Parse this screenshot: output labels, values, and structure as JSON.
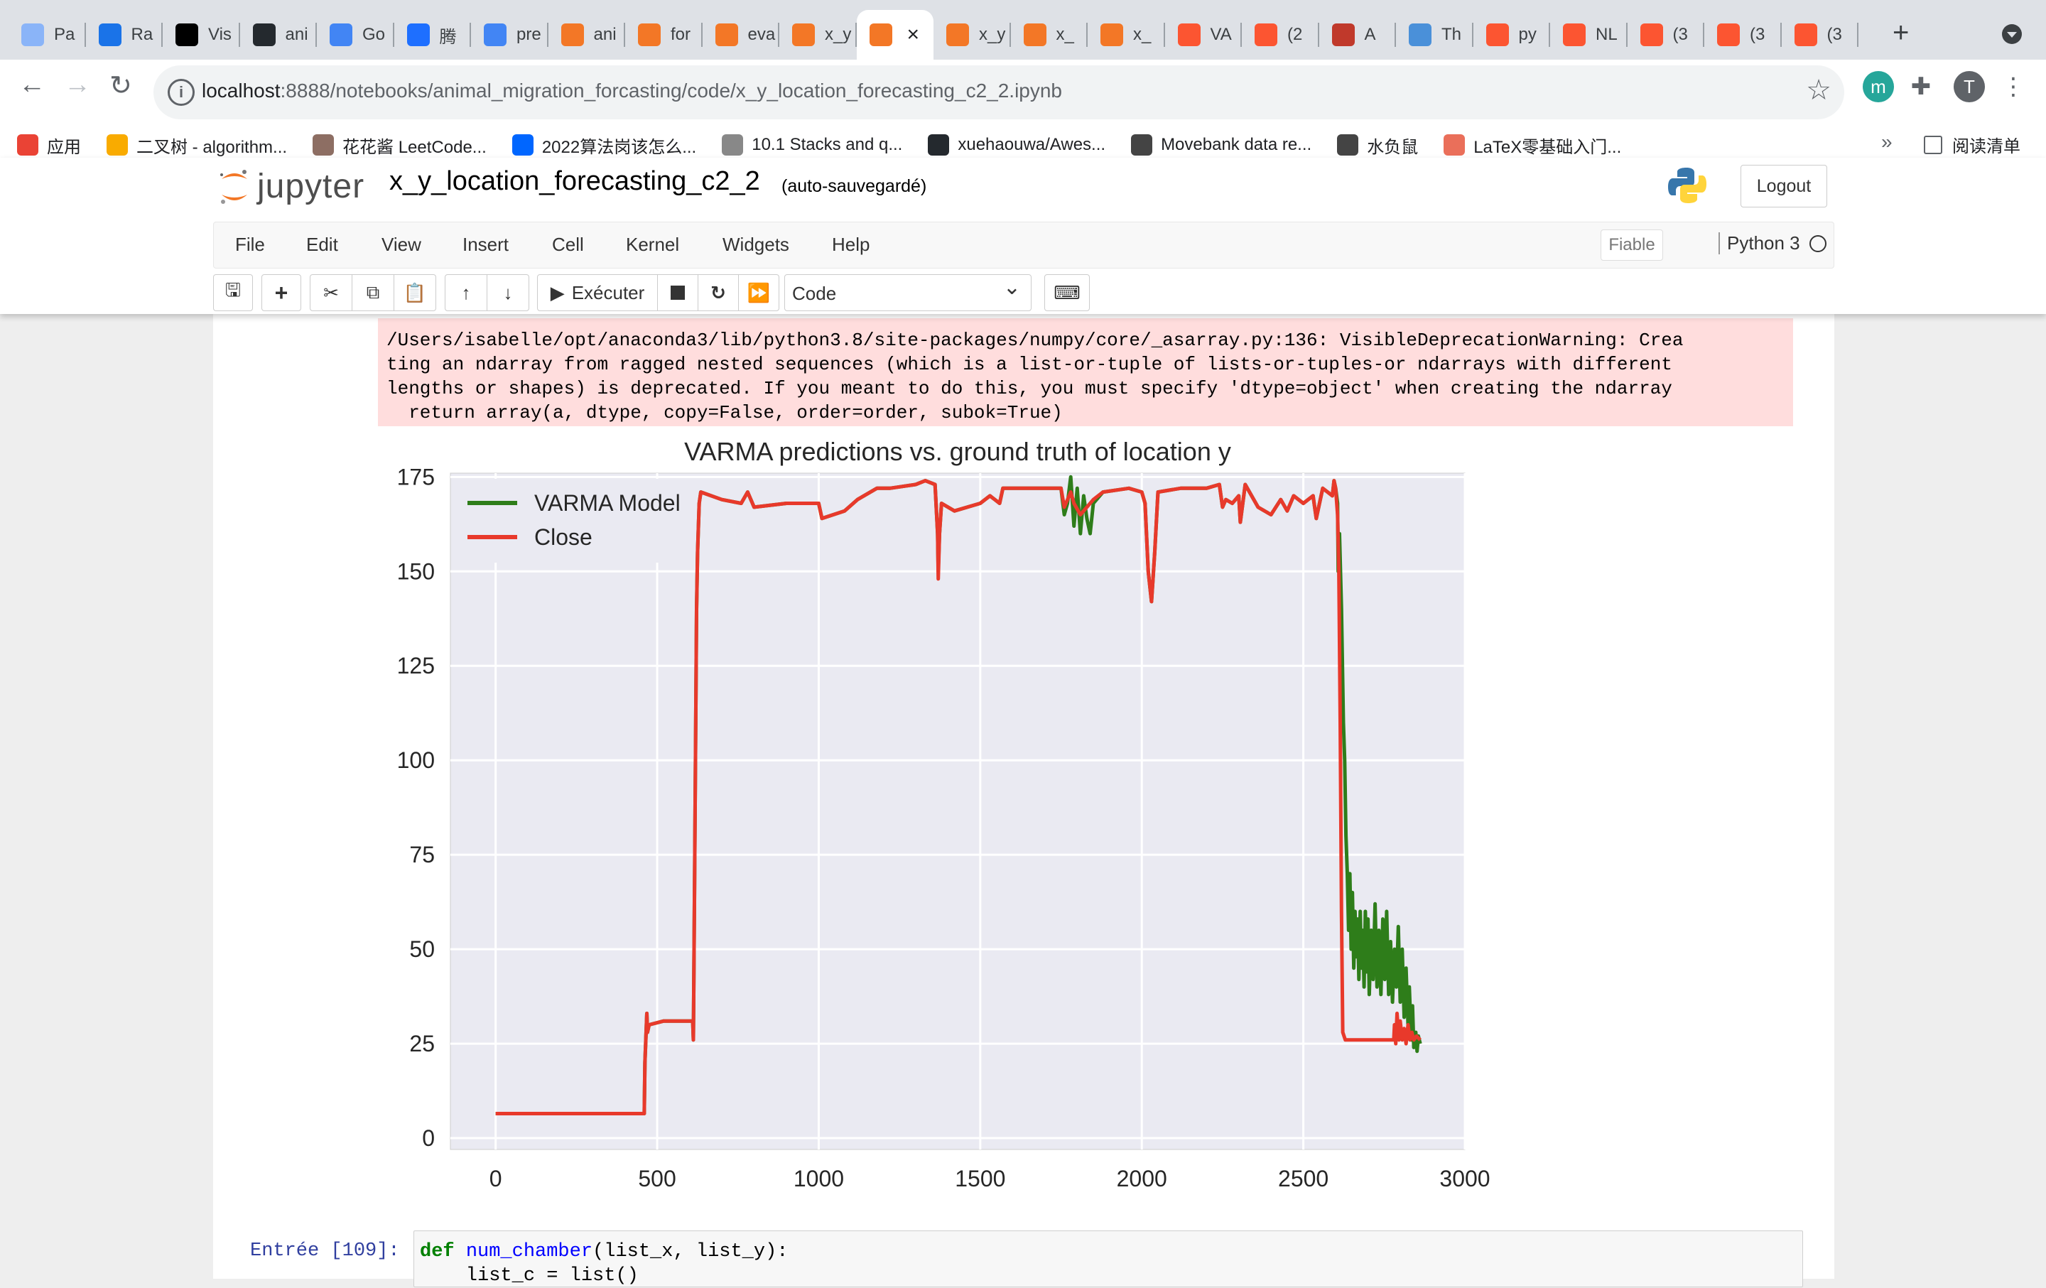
{
  "browser": {
    "tabs": [
      {
        "label": "Pa",
        "icon": "google-icon",
        "color": "#8ab4f8"
      },
      {
        "label": "Ra",
        "icon": "noaa-icon",
        "color": "#1a73e8"
      },
      {
        "label": "Vis",
        "icon": "medium-icon",
        "color": "#000000"
      },
      {
        "label": "ani",
        "icon": "github-icon",
        "color": "#24292e"
      },
      {
        "label": "Go",
        "icon": "google-translate-icon",
        "color": "#4285f4"
      },
      {
        "label": "腾",
        "icon": "tencent-icon",
        "color": "#1e6fff"
      },
      {
        "label": "pre",
        "icon": "docs-icon",
        "color": "#4285f4"
      },
      {
        "label": "ani",
        "icon": "jupyter-icon",
        "color": "#f37726"
      },
      {
        "label": "for",
        "icon": "notebook-icon",
        "color": "#f37726"
      },
      {
        "label": "eva",
        "icon": "notebook-icon",
        "color": "#f37726"
      },
      {
        "label": "x_y",
        "icon": "hourglass-icon",
        "color": "#f37726"
      },
      {
        "label": "",
        "icon": "notebook-icon",
        "color": "#f37726",
        "active": true
      },
      {
        "label": "x_y",
        "icon": "notebook-icon",
        "color": "#f37726"
      },
      {
        "label": "x_",
        "icon": "hourglass-icon",
        "color": "#f37726"
      },
      {
        "label": "x_",
        "icon": "notebook-icon",
        "color": "#f37726"
      },
      {
        "label": "VA",
        "icon": "csdn-icon",
        "color": "#fc5531"
      },
      {
        "label": "(2",
        "icon": "csdn-icon",
        "color": "#fc5531"
      },
      {
        "label": "A",
        "icon": "scholar-icon",
        "color": "#c0392b"
      },
      {
        "label": "Th",
        "icon": "globe-icon",
        "color": "#4a90d9"
      },
      {
        "label": "py",
        "icon": "csdn-icon",
        "color": "#fc5531"
      },
      {
        "label": "NL",
        "icon": "csdn-icon",
        "color": "#fc5531"
      },
      {
        "label": "(3",
        "icon": "csdn-icon",
        "color": "#fc5531"
      },
      {
        "label": "(3",
        "icon": "csdn-icon",
        "color": "#fc5531"
      },
      {
        "label": "(3",
        "icon": "csdn-icon",
        "color": "#fc5531"
      }
    ],
    "url_host": "localhost",
    "url_rest": ":8888/notebooks/animal_migration_forcasting/code/x_y_location_forecasting_c2_2.ipynb",
    "profile_initial": "T",
    "ext_initial": "m",
    "bookmarks": [
      {
        "label": "应用",
        "icon": "apps-icon",
        "color": "#ea4335"
      },
      {
        "label": "二叉树 - algorithm...",
        "icon": "emoji-icon",
        "color": "#f9ab00"
      },
      {
        "label": "花花酱 LeetCode...",
        "icon": "avatar-icon",
        "color": "#8d6e63"
      },
      {
        "label": "2022算法岗该怎么...",
        "icon": "zhihu-icon",
        "color": "#0066ff"
      },
      {
        "label": "10.1 Stacks and q...",
        "icon": "w-icon",
        "color": "#888888"
      },
      {
        "label": "xuehaouwa/Awes...",
        "icon": "github-icon",
        "color": "#24292e"
      },
      {
        "label": "Movebank data re...",
        "icon": "paw-icon",
        "color": "#444444"
      },
      {
        "label": "水负鼠",
        "icon": "paw-icon",
        "color": "#444444"
      },
      {
        "label": "LaTeX零基础入门...",
        "icon": "jian-icon",
        "color": "#ea6f5a"
      }
    ],
    "bookmarks_more": "»",
    "reading_list": "阅读清单"
  },
  "jupyter": {
    "logo_text": "jupyter",
    "notebook_name": "x_y_location_forecasting_c2_2",
    "autosave": "(auto-sauvegardé)",
    "logout": "Logout",
    "menus": [
      "File",
      "Edit",
      "View",
      "Insert",
      "Cell",
      "Kernel",
      "Widgets",
      "Help"
    ],
    "trusted": "Fiable",
    "kernel": "Python 3",
    "run_label": "Exécuter",
    "cell_type": "Code"
  },
  "output": {
    "stderr": "/Users/isabelle/opt/anaconda3/lib/python3.8/site-packages/numpy/core/_asarray.py:136: VisibleDeprecationWarning: Crea\nting an ndarray from ragged nested sequences (which is a list-or-tuple of lists-or-tuples-or ndarrays with different\nlengths or shapes) is deprecated. If you meant to do this, you must specify 'dtype=object' when creating the ndarray\n  return array(a, dtype, copy=False, order=order, subok=True)"
  },
  "next_cell": {
    "prompt": "Entrée [109]:",
    "line1_kw": "def",
    "line1_fn": "num_chamber",
    "line1_rest": "(list_x, list_y):",
    "line2": "    list_c = list()"
  },
  "chart_data": {
    "type": "line",
    "title": "VARMA predictions vs. ground truth of location y",
    "xlabel": "",
    "ylabel": "",
    "xlim": [
      -140,
      3000
    ],
    "ylim": [
      -3,
      176
    ],
    "xticks": [
      0,
      500,
      1000,
      1500,
      2000,
      2500,
      3000
    ],
    "yticks": [
      0,
      25,
      50,
      75,
      100,
      125,
      150,
      175
    ],
    "grid": true,
    "legend_position": "top-left",
    "series": [
      {
        "name": "VARMA Model",
        "color": "#2e7d1a",
        "points": [
          [
            0,
            6.5
          ],
          [
            460,
            6.5
          ],
          [
            460,
            7
          ],
          [
            462,
            20
          ],
          [
            468,
            33
          ],
          [
            470,
            28
          ],
          [
            475,
            30
          ],
          [
            520,
            31
          ],
          [
            610,
            31
          ],
          [
            612,
            26
          ],
          [
            615,
            60
          ],
          [
            622,
            140
          ],
          [
            625,
            155
          ],
          [
            630,
            168
          ],
          [
            635,
            171
          ],
          [
            700,
            169
          ],
          [
            760,
            168
          ],
          [
            780,
            171
          ],
          [
            800,
            167
          ],
          [
            900,
            168
          ],
          [
            1000,
            168
          ],
          [
            1010,
            164
          ],
          [
            1080,
            166
          ],
          [
            1120,
            169
          ],
          [
            1180,
            172
          ],
          [
            1220,
            172
          ],
          [
            1300,
            173
          ],
          [
            1330,
            174
          ],
          [
            1360,
            173
          ],
          [
            1368,
            160
          ],
          [
            1370,
            150
          ],
          [
            1374,
            160
          ],
          [
            1380,
            168
          ],
          [
            1420,
            166
          ],
          [
            1500,
            168
          ],
          [
            1530,
            170
          ],
          [
            1560,
            168
          ],
          [
            1570,
            172
          ],
          [
            1620,
            172
          ],
          [
            1730,
            172
          ],
          [
            1750,
            172
          ],
          [
            1760,
            165
          ],
          [
            1770,
            168
          ],
          [
            1780,
            175
          ],
          [
            1790,
            162
          ],
          [
            1800,
            172
          ],
          [
            1810,
            160
          ],
          [
            1820,
            170
          ],
          [
            1830,
            164
          ],
          [
            1840,
            160
          ],
          [
            1850,
            168
          ],
          [
            1880,
            171
          ],
          [
            1960,
            172
          ],
          [
            2000,
            171
          ],
          [
            2010,
            168
          ],
          [
            2020,
            150
          ],
          [
            2030,
            142
          ],
          [
            2040,
            155
          ],
          [
            2050,
            171
          ],
          [
            2120,
            172
          ],
          [
            2200,
            172
          ],
          [
            2240,
            173
          ],
          [
            2250,
            167
          ],
          [
            2260,
            169
          ],
          [
            2280,
            168
          ],
          [
            2300,
            170
          ],
          [
            2305,
            163
          ],
          [
            2320,
            173
          ],
          [
            2340,
            170
          ],
          [
            2360,
            167
          ],
          [
            2400,
            165
          ],
          [
            2430,
            169
          ],
          [
            2450,
            166
          ],
          [
            2470,
            170
          ],
          [
            2500,
            168
          ],
          [
            2530,
            170
          ],
          [
            2540,
            164
          ],
          [
            2560,
            172
          ],
          [
            2590,
            170
          ],
          [
            2595,
            174
          ],
          [
            2600,
            172
          ],
          [
            2606,
            168
          ],
          [
            2608,
            150
          ],
          [
            2612,
            160
          ],
          [
            2618,
            140
          ],
          [
            2624,
            110
          ],
          [
            2628,
            100
          ],
          [
            2632,
            80
          ],
          [
            2636,
            70
          ],
          [
            2640,
            55
          ],
          [
            2644,
            70
          ],
          [
            2648,
            50
          ],
          [
            2652,
            65
          ],
          [
            2656,
            45
          ],
          [
            2660,
            60
          ],
          [
            2664,
            48
          ],
          [
            2668,
            58
          ],
          [
            2672,
            42
          ],
          [
            2676,
            60
          ],
          [
            2680,
            45
          ],
          [
            2684,
            55
          ],
          [
            2688,
            40
          ],
          [
            2692,
            60
          ],
          [
            2696,
            44
          ],
          [
            2700,
            58
          ],
          [
            2704,
            38
          ],
          [
            2710,
            55
          ],
          [
            2716,
            42
          ],
          [
            2722,
            62
          ],
          [
            2728,
            40
          ],
          [
            2734,
            55
          ],
          [
            2740,
            38
          ],
          [
            2746,
            58
          ],
          [
            2752,
            42
          ],
          [
            2758,
            60
          ],
          [
            2764,
            38
          ],
          [
            2770,
            52
          ],
          [
            2776,
            36
          ],
          [
            2782,
            50
          ],
          [
            2788,
            40
          ],
          [
            2794,
            56
          ],
          [
            2800,
            36
          ],
          [
            2806,
            50
          ],
          [
            2812,
            32
          ],
          [
            2818,
            45
          ],
          [
            2824,
            30
          ],
          [
            2828,
            40
          ],
          [
            2834,
            26
          ],
          [
            2838,
            35
          ],
          [
            2842,
            24
          ],
          [
            2848,
            28
          ],
          [
            2852,
            23
          ],
          [
            2856,
            27
          ],
          [
            2862,
            25
          ]
        ]
      },
      {
        "name": "Close",
        "color": "#e8392b",
        "points": [
          [
            0,
            6.5
          ],
          [
            460,
            6.5
          ],
          [
            460,
            7
          ],
          [
            462,
            20
          ],
          [
            468,
            33
          ],
          [
            470,
            28
          ],
          [
            475,
            30
          ],
          [
            520,
            31
          ],
          [
            610,
            31
          ],
          [
            612,
            26
          ],
          [
            615,
            60
          ],
          [
            622,
            140
          ],
          [
            625,
            155
          ],
          [
            630,
            168
          ],
          [
            635,
            171
          ],
          [
            700,
            169
          ],
          [
            760,
            168
          ],
          [
            780,
            171
          ],
          [
            800,
            167
          ],
          [
            900,
            168
          ],
          [
            1000,
            168
          ],
          [
            1010,
            164
          ],
          [
            1080,
            166
          ],
          [
            1120,
            169
          ],
          [
            1180,
            172
          ],
          [
            1220,
            172
          ],
          [
            1300,
            173
          ],
          [
            1330,
            174
          ],
          [
            1360,
            173
          ],
          [
            1368,
            160
          ],
          [
            1370,
            148
          ],
          [
            1374,
            160
          ],
          [
            1380,
            168
          ],
          [
            1420,
            166
          ],
          [
            1500,
            168
          ],
          [
            1530,
            170
          ],
          [
            1560,
            168
          ],
          [
            1570,
            172
          ],
          [
            1620,
            172
          ],
          [
            1730,
            172
          ],
          [
            1750,
            172
          ],
          [
            1760,
            167
          ],
          [
            1780,
            171
          ],
          [
            1790,
            168
          ],
          [
            1810,
            165
          ],
          [
            1830,
            167
          ],
          [
            1850,
            169
          ],
          [
            1880,
            171
          ],
          [
            1960,
            172
          ],
          [
            2000,
            171
          ],
          [
            2010,
            168
          ],
          [
            2020,
            150
          ],
          [
            2030,
            142
          ],
          [
            2040,
            155
          ],
          [
            2050,
            171
          ],
          [
            2120,
            172
          ],
          [
            2200,
            172
          ],
          [
            2240,
            173
          ],
          [
            2250,
            167
          ],
          [
            2260,
            169
          ],
          [
            2280,
            168
          ],
          [
            2300,
            170
          ],
          [
            2305,
            163
          ],
          [
            2320,
            173
          ],
          [
            2340,
            170
          ],
          [
            2360,
            167
          ],
          [
            2400,
            165
          ],
          [
            2430,
            169
          ],
          [
            2450,
            166
          ],
          [
            2470,
            170
          ],
          [
            2500,
            168
          ],
          [
            2530,
            170
          ],
          [
            2540,
            164
          ],
          [
            2560,
            172
          ],
          [
            2590,
            170
          ],
          [
            2595,
            174
          ],
          [
            2600,
            172
          ],
          [
            2606,
            165
          ],
          [
            2610,
            150
          ],
          [
            2614,
            110
          ],
          [
            2618,
            60
          ],
          [
            2622,
            28
          ],
          [
            2630,
            26
          ],
          [
            2700,
            26
          ],
          [
            2780,
            26
          ],
          [
            2782,
            30
          ],
          [
            2786,
            25
          ],
          [
            2790,
            33
          ],
          [
            2796,
            26
          ],
          [
            2800,
            31
          ],
          [
            2806,
            26
          ],
          [
            2812,
            29
          ],
          [
            2818,
            25
          ],
          [
            2824,
            30
          ],
          [
            2830,
            26
          ],
          [
            2836,
            28
          ],
          [
            2842,
            26
          ],
          [
            2850,
            27
          ],
          [
            2862,
            26
          ]
        ]
      }
    ]
  }
}
